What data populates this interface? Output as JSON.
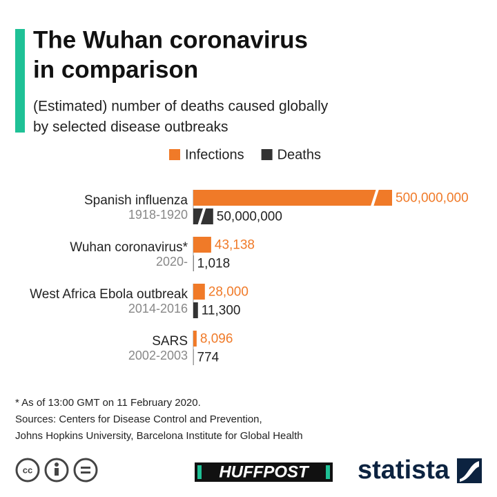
{
  "chart_data": {
    "type": "bar",
    "orientation": "horizontal",
    "title": [
      "The Wuhan coronavirus",
      "in comparison"
    ],
    "subtitle": [
      "(Estimated) number of deaths caused globally",
      "by selected disease outbreaks"
    ],
    "categories": [
      "Spanish influenza",
      "Wuhan coronavirus*",
      "West Africa Ebola outbreak",
      "SARS"
    ],
    "periods": [
      "1918-1920",
      "2020-",
      "2014-2016",
      "2002-2003"
    ],
    "series": [
      {
        "name": "Infections",
        "color": "#f07a28",
        "values": [
          500000000,
          43138,
          28000,
          8096
        ],
        "value_labels": [
          "500,000,000",
          "43,138",
          "28,000",
          "8,096"
        ]
      },
      {
        "name": "Deaths",
        "color": "#333333",
        "values": [
          50000000,
          1018,
          11300,
          774
        ],
        "value_labels": [
          "50,000,000",
          "1,018",
          "11,300",
          "774"
        ]
      }
    ],
    "legend": "top",
    "notes": [
      "* As of 13:00 GMT on 11 February 2020.",
      "Sources: Centers for Disease Control and Prevention,",
      "Johns Hopkins University, Barcelona Institute for Global Health"
    ],
    "brands": [
      "HUFFPOST",
      "statista"
    ]
  }
}
